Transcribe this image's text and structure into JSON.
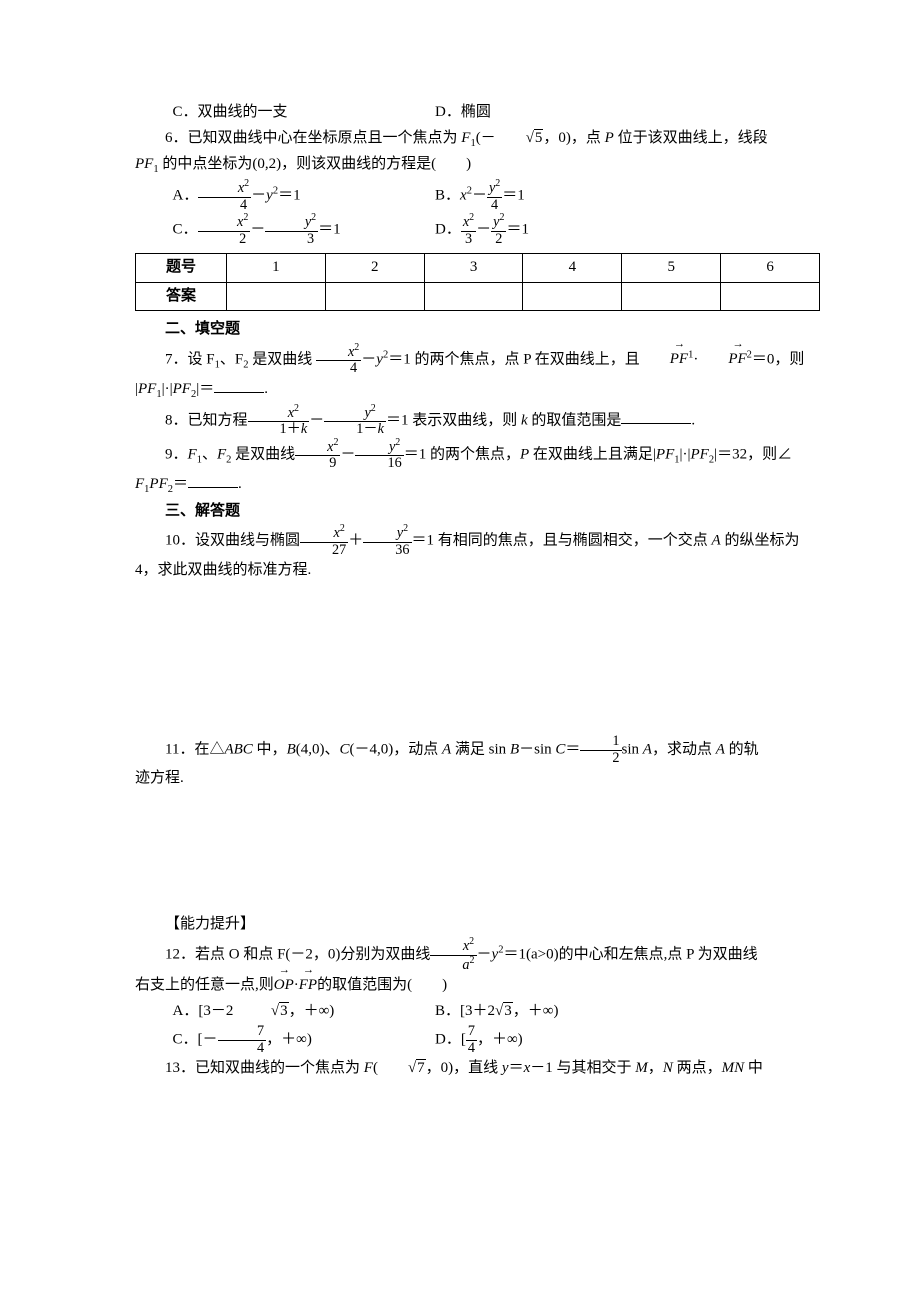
{
  "q5": {
    "optC": "C．双曲线的一支",
    "optD": "D．椭圆"
  },
  "q6": {
    "stem_a": "6．已知双曲线中心在坐标原点且一个焦点为 ",
    "stem_f1": "F",
    "stem_f1_sub": "1",
    "stem_b_open": "(－",
    "stem_sqrt": "5",
    "stem_b_close": "，0)，点 ",
    "stem_p": "P",
    "stem_c": " 位于该双曲线上，线段",
    "line2_a": "PF",
    "line2_sub": "1",
    "line2_b": " 的中点坐标为(0,2)，则该双曲线的方程是(　　)",
    "A_pre": "A．",
    "A_num": "x",
    "A_num_sup": "2",
    "A_den": "4",
    "A_post1": "－",
    "A_y": "y",
    "A_ysup": "2",
    "A_post2": "＝1",
    "B_pre": "B．",
    "B_x": "x",
    "B_xsup": "2",
    "B_mid": "－",
    "B_num": "y",
    "B_numsup": "2",
    "B_den": "4",
    "B_post": "＝1",
    "C_pre": "C．",
    "C_num1": "x",
    "C_num1sup": "2",
    "C_den1": "2",
    "C_mid": "－",
    "C_num2": "y",
    "C_num2sup": "2",
    "C_den2": "3",
    "C_post": "＝1",
    "D_pre": "D．",
    "D_num1": "x",
    "D_num1sup": "2",
    "D_den1": "3",
    "D_mid": "－",
    "D_num2": "y",
    "D_num2sup": "2",
    "D_den2": "2",
    "D_post": "＝1"
  },
  "answer_table": {
    "r1c0": "题号",
    "r1c1": "1",
    "r1c2": "2",
    "r1c3": "3",
    "r1c4": "4",
    "r1c5": "5",
    "r1c6": "6",
    "r2c0": "答案"
  },
  "sec2": "二、填空题",
  "q7": {
    "a": "7．设 F",
    "sub1": "1",
    "b": "、F",
    "sub2": "2",
    "c": " 是双曲线 ",
    "num": "x",
    "numsup": "2",
    "den": "4",
    "d": "－",
    "y": "y",
    "ysup": "2",
    "e": "＝1 的两个焦点，点 P 在双曲线上，且",
    "vec1": "PF",
    "vec1sup": "1",
    "dot": "·",
    "vec2": "PF",
    "vec2sup": "2",
    "f": "＝0，则",
    "line2a": "|",
    "line2pf1": "PF",
    "line2s1": "1",
    "line2b": "|·|",
    "line2pf2": "PF",
    "line2s2": "2",
    "line2c": "|＝",
    "line2d": "."
  },
  "q8": {
    "a": "8．已知方程",
    "n1": "x",
    "n1s": "2",
    "d1a": "1＋",
    "d1b": "k",
    "mid": "－",
    "n2": "y",
    "n2s": "2",
    "d2a": "1－",
    "d2b": "k",
    "b": "＝1 表示双曲线，则 ",
    "k": "k",
    "c": " 的取值范围是",
    "d": "."
  },
  "q9": {
    "a": "9．",
    "f1": "F",
    "s1": "1",
    "b": "、",
    "f2": "F",
    "s2": "2",
    "c": " 是双曲线",
    "n1": "x",
    "n1s": "2",
    "d1": "9",
    "mid": "－",
    "n2": "y",
    "n2s": "2",
    "d2": "16",
    "d": "＝1 的两个焦点，",
    "p": "P",
    "e": " 在双曲线上且满足|",
    "pf1": "PF",
    "ps1": "1",
    "f": "|·|",
    "pf2": "PF",
    "ps2": "2",
    "g": "|＝32，则∠",
    "line2a": "F",
    "line2s1": "1",
    "line2p": "P",
    "line2f2": "F",
    "line2s2": "2",
    "line2b": "＝",
    "line2c": "."
  },
  "sec3": "三、解答题",
  "q10": {
    "a": "10．设双曲线与椭圆",
    "n1": "x",
    "n1s": "2",
    "d1": "27",
    "mid": "＋",
    "n2": "y",
    "n2s": "2",
    "d2": "36",
    "b": "＝1 有相同的焦点，且与椭圆相交，一个交点 ",
    "A": "A",
    "c": " 的纵坐标为",
    "line2": "4，求此双曲线的标准方程."
  },
  "q11": {
    "a": "11．在△",
    "abc": "ABC",
    "b": " 中，",
    "B": "B",
    "c": "(4,0)、",
    "C": "C",
    "d": "(－4,0)，动点 ",
    "A": "A",
    "e": " 满足 sin ",
    "Bv": "B",
    "f": "－sin ",
    "Cv": "C",
    "g": "＝",
    "num": "1",
    "den": "2",
    "h": "sin ",
    "Av": "A",
    "i": "，求动点 ",
    "A2": "A",
    "j": " 的轨",
    "line2": "迹方程."
  },
  "cap": "【能力提升】",
  "q12": {
    "a": "12．若点 O 和点 F(－2，0)分别为双曲线",
    "n": "x",
    "ns": "2",
    "dn": "a",
    "dns": "2",
    "b": "－",
    "y": "y",
    "ys": "2",
    "c": "＝1(a>0)的中心和左焦点,点 P 为双曲线",
    "line2a": "右支上的任意一点,则",
    "v1": "OP",
    "dot": "·",
    "v2": "FP",
    "line2b": "的取值范围为(　　)",
    "A_pre": "A．[3－2",
    "A_sqrt": "3",
    "A_post": "，＋∞)",
    "B_pre": "B．[3＋2",
    "B_sqrt": "3",
    "B_post": "，＋∞)",
    "C_pre": "C．[－",
    "C_num": "7",
    "C_den": "4",
    "C_post": "，＋∞)",
    "D_pre": "D．[",
    "D_num": "7",
    "D_den": "4",
    "D_post": "，＋∞)"
  },
  "q13": {
    "a": "13．已知双曲线的一个焦点为 ",
    "F": "F",
    "b": "(",
    "sqrt": "7",
    "c": "，0)，直线 ",
    "y": "y",
    "d": "＝",
    "x": "x",
    "e": "－1 与其相交于 ",
    "M": "M",
    "f": "，",
    "N": "N",
    "g": " 两点，",
    "MN": "MN",
    "h": " 中"
  }
}
